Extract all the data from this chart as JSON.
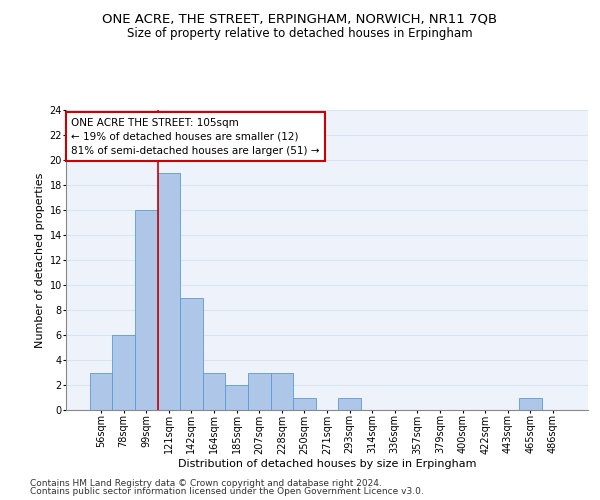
{
  "title": "ONE ACRE, THE STREET, ERPINGHAM, NORWICH, NR11 7QB",
  "subtitle": "Size of property relative to detached houses in Erpingham",
  "xlabel": "Distribution of detached houses by size in Erpingham",
  "ylabel": "Number of detached properties",
  "bin_labels": [
    "56sqm",
    "78sqm",
    "99sqm",
    "121sqm",
    "142sqm",
    "164sqm",
    "185sqm",
    "207sqm",
    "228sqm",
    "250sqm",
    "271sqm",
    "293sqm",
    "314sqm",
    "336sqm",
    "357sqm",
    "379sqm",
    "400sqm",
    "422sqm",
    "443sqm",
    "465sqm",
    "486sqm"
  ],
  "bar_heights": [
    3,
    6,
    16,
    19,
    9,
    3,
    2,
    3,
    3,
    1,
    0,
    1,
    0,
    0,
    0,
    0,
    0,
    0,
    0,
    1,
    0
  ],
  "bar_color": "#aec6e8",
  "bar_edge_color": "#5b9bd5",
  "annotation_line1": "ONE ACRE THE STREET: 105sqm",
  "annotation_line2": "← 19% of detached houses are smaller (12)",
  "annotation_line3": "81% of semi-detached houses are larger (51) →",
  "vline_color": "#cc0000",
  "vline_x_index": 2.5,
  "annotation_box_color": "#ffffff",
  "annotation_box_edge_color": "#cc0000",
  "ylim": [
    0,
    24
  ],
  "yticks": [
    0,
    2,
    4,
    6,
    8,
    10,
    12,
    14,
    16,
    18,
    20,
    22,
    24
  ],
  "footer_line1": "Contains HM Land Registry data © Crown copyright and database right 2024.",
  "footer_line2": "Contains public sector information licensed under the Open Government Licence v3.0.",
  "bg_color": "#eef3fb",
  "grid_color": "#d8e4f0",
  "title_fontsize": 9.5,
  "subtitle_fontsize": 8.5,
  "xlabel_fontsize": 8,
  "ylabel_fontsize": 8,
  "tick_fontsize": 7,
  "annotation_fontsize": 7.5,
  "footer_fontsize": 6.5
}
